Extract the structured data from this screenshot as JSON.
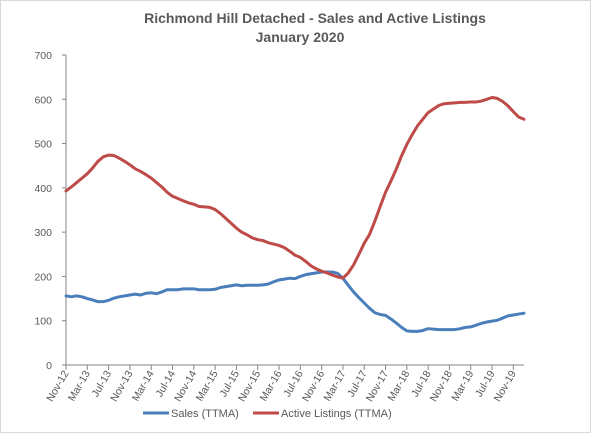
{
  "chart_data": {
    "type": "line",
    "title": "Richmond Hill Detached - Sales and Active Listings",
    "subtitle": "January 2020",
    "xlabel": "",
    "ylabel": "",
    "ylim": [
      0,
      700
    ],
    "yticks": [
      "0",
      "100",
      "200",
      "300",
      "400",
      "500",
      "600",
      "700"
    ],
    "x_tick_labels": [
      "Nov-12",
      "Mar-13",
      "Jul-13",
      "Nov-13",
      "Mar-14",
      "Jul-14",
      "Nov-14",
      "Mar-15",
      "Jul-15",
      "Nov-15",
      "Mar-16",
      "Jul-16",
      "Nov-16",
      "Mar-17",
      "Jul-17",
      "Nov-17",
      "Mar-18",
      "Jul-18",
      "Nov-18",
      "Mar-19",
      "Jul-19",
      "Nov-19"
    ],
    "x": [
      "Nov-12",
      "Dec-12",
      "Jan-13",
      "Feb-13",
      "Mar-13",
      "Apr-13",
      "May-13",
      "Jun-13",
      "Jul-13",
      "Aug-13",
      "Sep-13",
      "Oct-13",
      "Nov-13",
      "Dec-13",
      "Jan-14",
      "Feb-14",
      "Mar-14",
      "Apr-14",
      "May-14",
      "Jun-14",
      "Jul-14",
      "Aug-14",
      "Sep-14",
      "Oct-14",
      "Nov-14",
      "Dec-14",
      "Jan-15",
      "Feb-15",
      "Mar-15",
      "Apr-15",
      "May-15",
      "Jun-15",
      "Jul-15",
      "Aug-15",
      "Sep-15",
      "Oct-15",
      "Nov-15",
      "Dec-15",
      "Jan-16",
      "Feb-16",
      "Mar-16",
      "Apr-16",
      "May-16",
      "Jun-16",
      "Jul-16",
      "Aug-16",
      "Sep-16",
      "Oct-16",
      "Nov-16",
      "Dec-16",
      "Jan-17",
      "Feb-17",
      "Mar-17",
      "Apr-17",
      "May-17",
      "Jun-17",
      "Jul-17",
      "Aug-17",
      "Sep-17",
      "Oct-17",
      "Nov-17",
      "Dec-17",
      "Jan-18",
      "Feb-18",
      "Mar-18",
      "Apr-18",
      "May-18",
      "Jun-18",
      "Jul-18",
      "Aug-18",
      "Sep-18",
      "Oct-18",
      "Nov-18",
      "Dec-18",
      "Jan-19",
      "Feb-19",
      "Mar-19",
      "Apr-19",
      "May-19",
      "Jun-19",
      "Jul-19",
      "Aug-19",
      "Sep-19",
      "Oct-19",
      "Nov-19",
      "Dec-19",
      "Jan-20"
    ],
    "series": [
      {
        "name": "Sales (TTMA)",
        "color": "#4a7ebb",
        "values": [
          156,
          154,
          156,
          154,
          150,
          147,
          143,
          143,
          146,
          151,
          154,
          156,
          158,
          160,
          158,
          162,
          163,
          161,
          165,
          170,
          170,
          170,
          172,
          172,
          172,
          170,
          170,
          170,
          171,
          175,
          177,
          179,
          181,
          179,
          180,
          180,
          180,
          181,
          183,
          188,
          192,
          194,
          196,
          195,
          200,
          204,
          206,
          208,
          210,
          210,
          210,
          207,
          196,
          180,
          165,
          152,
          140,
          128,
          118,
          114,
          112,
          104,
          95,
          85,
          77,
          76,
          76,
          78,
          82,
          81,
          80,
          80,
          80,
          80,
          82,
          85,
          86,
          90,
          94,
          97,
          99,
          101,
          106,
          111,
          113,
          115,
          117
        ]
      },
      {
        "name": "Active Listings (TTMA)",
        "color": "#be4b48",
        "values": [
          393,
          402,
          412,
          422,
          432,
          445,
          460,
          470,
          474,
          473,
          467,
          460,
          452,
          443,
          437,
          430,
          422,
          412,
          402,
          390,
          381,
          376,
          371,
          366,
          363,
          358,
          357,
          356,
          351,
          342,
          331,
          320,
          309,
          300,
          294,
          287,
          283,
          281,
          276,
          273,
          270,
          265,
          257,
          248,
          243,
          234,
          224,
          217,
          212,
          208,
          203,
          199,
          196,
          208,
          226,
          250,
          275,
          295,
          325,
          358,
          390,
          415,
          442,
          472,
          498,
          520,
          540,
          555,
          570,
          578,
          586,
          590,
          591,
          592,
          593,
          593,
          594,
          594,
          596,
          600,
          604,
          602,
          595,
          585,
          572,
          560,
          555
        ]
      }
    ],
    "legend_position": "bottom",
    "grid": false
  }
}
